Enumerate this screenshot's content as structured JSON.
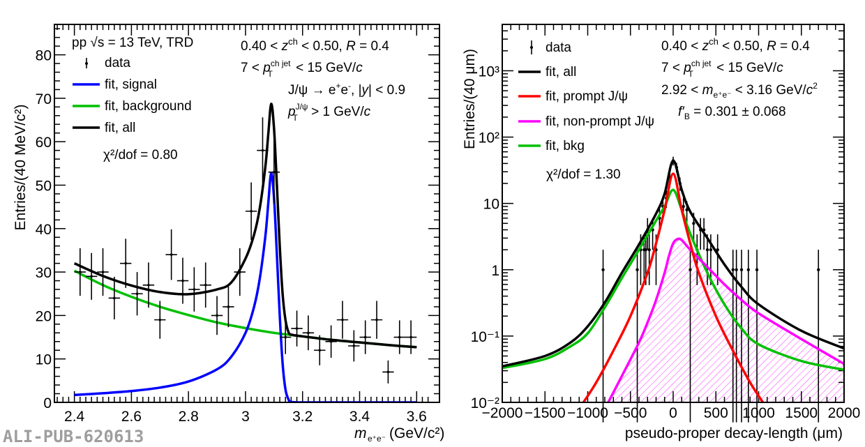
{
  "watermark": "ALI-PUB-620613",
  "chart_data": [
    {
      "type": "scatter",
      "title": "",
      "xlabel_main": "m",
      "xlabel_sub": "e⁺e⁻",
      "xlabel_unit": "(GeV/c²)",
      "ylabel": "Entries/(40 MeV/c²)",
      "xlim": [
        2.33,
        3.68
      ],
      "ylim": [
        0,
        87
      ],
      "xticks": [
        2.4,
        2.6,
        2.8,
        3.0,
        3.2,
        3.4,
        3.6
      ],
      "xtick_labels": [
        "2.4",
        "2.6",
        "2.8",
        "3",
        "3.2",
        "3.4",
        "3.6"
      ],
      "yticks": [
        0,
        10,
        20,
        30,
        40,
        50,
        60,
        70,
        80
      ],
      "ytick_labels": [
        "0",
        "10",
        "20",
        "30",
        "40",
        "50",
        "60",
        "70",
        "80"
      ],
      "legend_position": "top-left",
      "legend": [
        {
          "label": "data",
          "kind": "marker",
          "color": "#000000"
        },
        {
          "label": "fit, signal",
          "kind": "line",
          "color": "#0000ff"
        },
        {
          "label": "fit, background",
          "kind": "line",
          "color": "#00c000"
        },
        {
          "label": "fit, all",
          "kind": "line",
          "color": "#000000"
        }
      ],
      "chi2": "χ²/dof = 0.80",
      "header": "pp  √s = 13 TeV, TRD",
      "annotations": [
        "0.40 < zᶜʰ < 0.50,  R = 0.4",
        "7 < p_T^{ch jet} < 15 GeV/c",
        "J/ψ → e⁺e⁻, |y| < 0.9",
        "p_T^{J/ψ} > 1 GeV/c"
      ],
      "data": {
        "x": [
          2.42,
          2.46,
          2.5,
          2.54,
          2.58,
          2.62,
          2.66,
          2.7,
          2.74,
          2.78,
          2.82,
          2.86,
          2.9,
          2.94,
          2.98,
          3.02,
          3.06,
          3.1,
          3.14,
          3.18,
          3.22,
          3.26,
          3.3,
          3.34,
          3.38,
          3.42,
          3.46,
          3.5,
          3.54,
          3.58
        ],
        "y": [
          30,
          29,
          30,
          24,
          32,
          25,
          27,
          19,
          34,
          28,
          26,
          27,
          20,
          22,
          30,
          44,
          58,
          53,
          15,
          17,
          16,
          12,
          14,
          19,
          13,
          15,
          19,
          7,
          15,
          15
        ]
      },
      "series": [
        {
          "name": "fit, background",
          "color": "#00c000",
          "x": [
            2.4,
            2.5,
            2.6,
            2.7,
            2.8,
            2.9,
            3.0,
            3.1,
            3.2,
            3.3,
            3.4,
            3.5,
            3.6
          ],
          "y": [
            30.3,
            27.0,
            24.3,
            22.0,
            20.1,
            18.4,
            17.1,
            16.0,
            15.2,
            14.4,
            13.8,
            13.2,
            12.7
          ]
        },
        {
          "name": "fit, signal",
          "color": "#0000ff",
          "x": [
            2.4,
            2.5,
            2.6,
            2.7,
            2.8,
            2.9,
            2.95,
            3.0,
            3.03,
            3.05,
            3.07,
            3.08,
            3.09,
            3.1,
            3.11,
            3.12,
            3.13,
            3.14,
            3.15,
            3.16,
            3.2,
            3.3,
            3.4,
            3.5,
            3.6
          ],
          "y": [
            1.7,
            2.1,
            2.6,
            3.4,
            4.8,
            7.6,
            10.5,
            16.0,
            22.0,
            28.5,
            38.5,
            46.0,
            52.8,
            47.0,
            34.0,
            20.0,
            9.0,
            3.0,
            0.8,
            0.1,
            0,
            0,
            0,
            0,
            0
          ]
        },
        {
          "name": "fit, all",
          "color": "#000000",
          "x": [
            2.4,
            2.5,
            2.6,
            2.7,
            2.8,
            2.9,
            2.95,
            3.0,
            3.03,
            3.05,
            3.07,
            3.08,
            3.09,
            3.1,
            3.11,
            3.12,
            3.13,
            3.14,
            3.15,
            3.16,
            3.2,
            3.3,
            3.4,
            3.5,
            3.6
          ],
          "y": [
            32.0,
            29.1,
            26.9,
            25.4,
            24.9,
            26.0,
            27.6,
            33.1,
            38.6,
            44.7,
            54.5,
            61.9,
            68.7,
            63.0,
            50.0,
            36.0,
            25.0,
            19.0,
            16.3,
            15.6,
            15.2,
            14.4,
            13.8,
            13.2,
            12.7
          ]
        }
      ]
    },
    {
      "type": "scatter",
      "title": "",
      "xlabel": "pseudo-proper decay-length (μm)",
      "ylabel": "Entries/(40 μm)",
      "yscale": "log",
      "xlim": [
        -2000,
        2000
      ],
      "ylim": [
        0.01,
        5000
      ],
      "xticks": [
        -2000,
        -1500,
        -1000,
        -500,
        0,
        500,
        1000,
        1500,
        2000
      ],
      "xtick_labels": [
        "−2000",
        "−1500",
        "−1000",
        "−500",
        "0",
        "500",
        "1000",
        "1500",
        "2000"
      ],
      "yticks": [
        0.01,
        0.1,
        1,
        10,
        100,
        1000
      ],
      "ytick_labels": [
        "10⁻²",
        "10⁻¹",
        "1",
        "10",
        "10²",
        "10³"
      ],
      "legend_position": "top-left",
      "legend": [
        {
          "label": "data",
          "kind": "marker",
          "color": "#000000"
        },
        {
          "label": "fit, all",
          "kind": "line",
          "color": "#000000"
        },
        {
          "label": "fit, prompt J/ψ",
          "kind": "line",
          "color": "#ff0000"
        },
        {
          "label": "fit, non-prompt J/ψ",
          "kind": "line",
          "color": "#ff00ff"
        },
        {
          "label": "fit, bkg",
          "kind": "line",
          "color": "#00c000"
        }
      ],
      "chi2": "χ²/dof = 1.30",
      "annotations": [
        "0.40 < zᶜʰ < 0.50, R = 0.4",
        "7 < p_T^{ch jet} < 15 GeV/c",
        "2.92 < m_{e⁺e⁻} < 3.16 GeV/c²",
        "f′_B = 0.301 ± 0.068"
      ],
      "data": {
        "x": [
          -820,
          -420,
          -380,
          -340,
          -320,
          -300,
          -280,
          -240,
          -200,
          -160,
          -120,
          -80,
          -40,
          0,
          40,
          80,
          120,
          160,
          200,
          240,
          280,
          320,
          360,
          400,
          440,
          520,
          700,
          740,
          800,
          880,
          980,
          1700
        ],
        "y": [
          1,
          1,
          2,
          2,
          2,
          4,
          2,
          4,
          2,
          6,
          9,
          12,
          25,
          44,
          35,
          20,
          9,
          8,
          1,
          5,
          2,
          4,
          4,
          2,
          2,
          2,
          1,
          1,
          1,
          1,
          1,
          1
        ]
      },
      "series": [
        {
          "name": "fit, all",
          "color": "#000000",
          "x": [
            -2000,
            -1500,
            -1200,
            -1000,
            -800,
            -600,
            -400,
            -200,
            -100,
            0,
            100,
            200,
            400,
            600,
            800,
            1000,
            1500,
            2000
          ],
          "y": [
            0.035,
            0.05,
            0.08,
            0.14,
            0.32,
            0.9,
            2.4,
            7.0,
            14.0,
            44.0,
            16.0,
            7.5,
            3.0,
            1.2,
            0.55,
            0.3,
            0.12,
            0.065
          ]
        },
        {
          "name": "fit, bkg",
          "color": "#00c000",
          "x": [
            -2000,
            -1500,
            -1200,
            -1000,
            -800,
            -600,
            -400,
            -200,
            -100,
            0,
            100,
            200,
            400,
            600,
            800,
            1000,
            1500,
            2000
          ],
          "y": [
            0.033,
            0.045,
            0.07,
            0.11,
            0.27,
            0.75,
            2.0,
            5.5,
            9.0,
            16.0,
            8.0,
            3.5,
            0.9,
            0.3,
            0.13,
            0.075,
            0.042,
            0.031
          ]
        },
        {
          "name": "fit, prompt J/ψ",
          "color": "#ff0000",
          "x": [
            -1050,
            -900,
            -700,
            -500,
            -300,
            -200,
            -100,
            0,
            100,
            200,
            300,
            500,
            700,
            900,
            1050
          ],
          "y": [
            0.01,
            0.02,
            0.06,
            0.2,
            0.9,
            2.5,
            8.0,
            28.0,
            8.0,
            2.5,
            0.9,
            0.2,
            0.06,
            0.02,
            0.01
          ]
        },
        {
          "name": "fit, non-prompt J/ψ",
          "color": "#ff00ff",
          "x": [
            -760,
            -600,
            -400,
            -300,
            -200,
            -100,
            -50,
            0,
            50,
            100,
            200,
            400,
            600,
            800,
            1000,
            1500,
            2000
          ],
          "y": [
            0.01,
            0.025,
            0.08,
            0.16,
            0.35,
            0.9,
            1.6,
            2.5,
            2.9,
            2.8,
            2.0,
            1.1,
            0.6,
            0.35,
            0.22,
            0.09,
            0.038
          ]
        }
      ]
    }
  ]
}
